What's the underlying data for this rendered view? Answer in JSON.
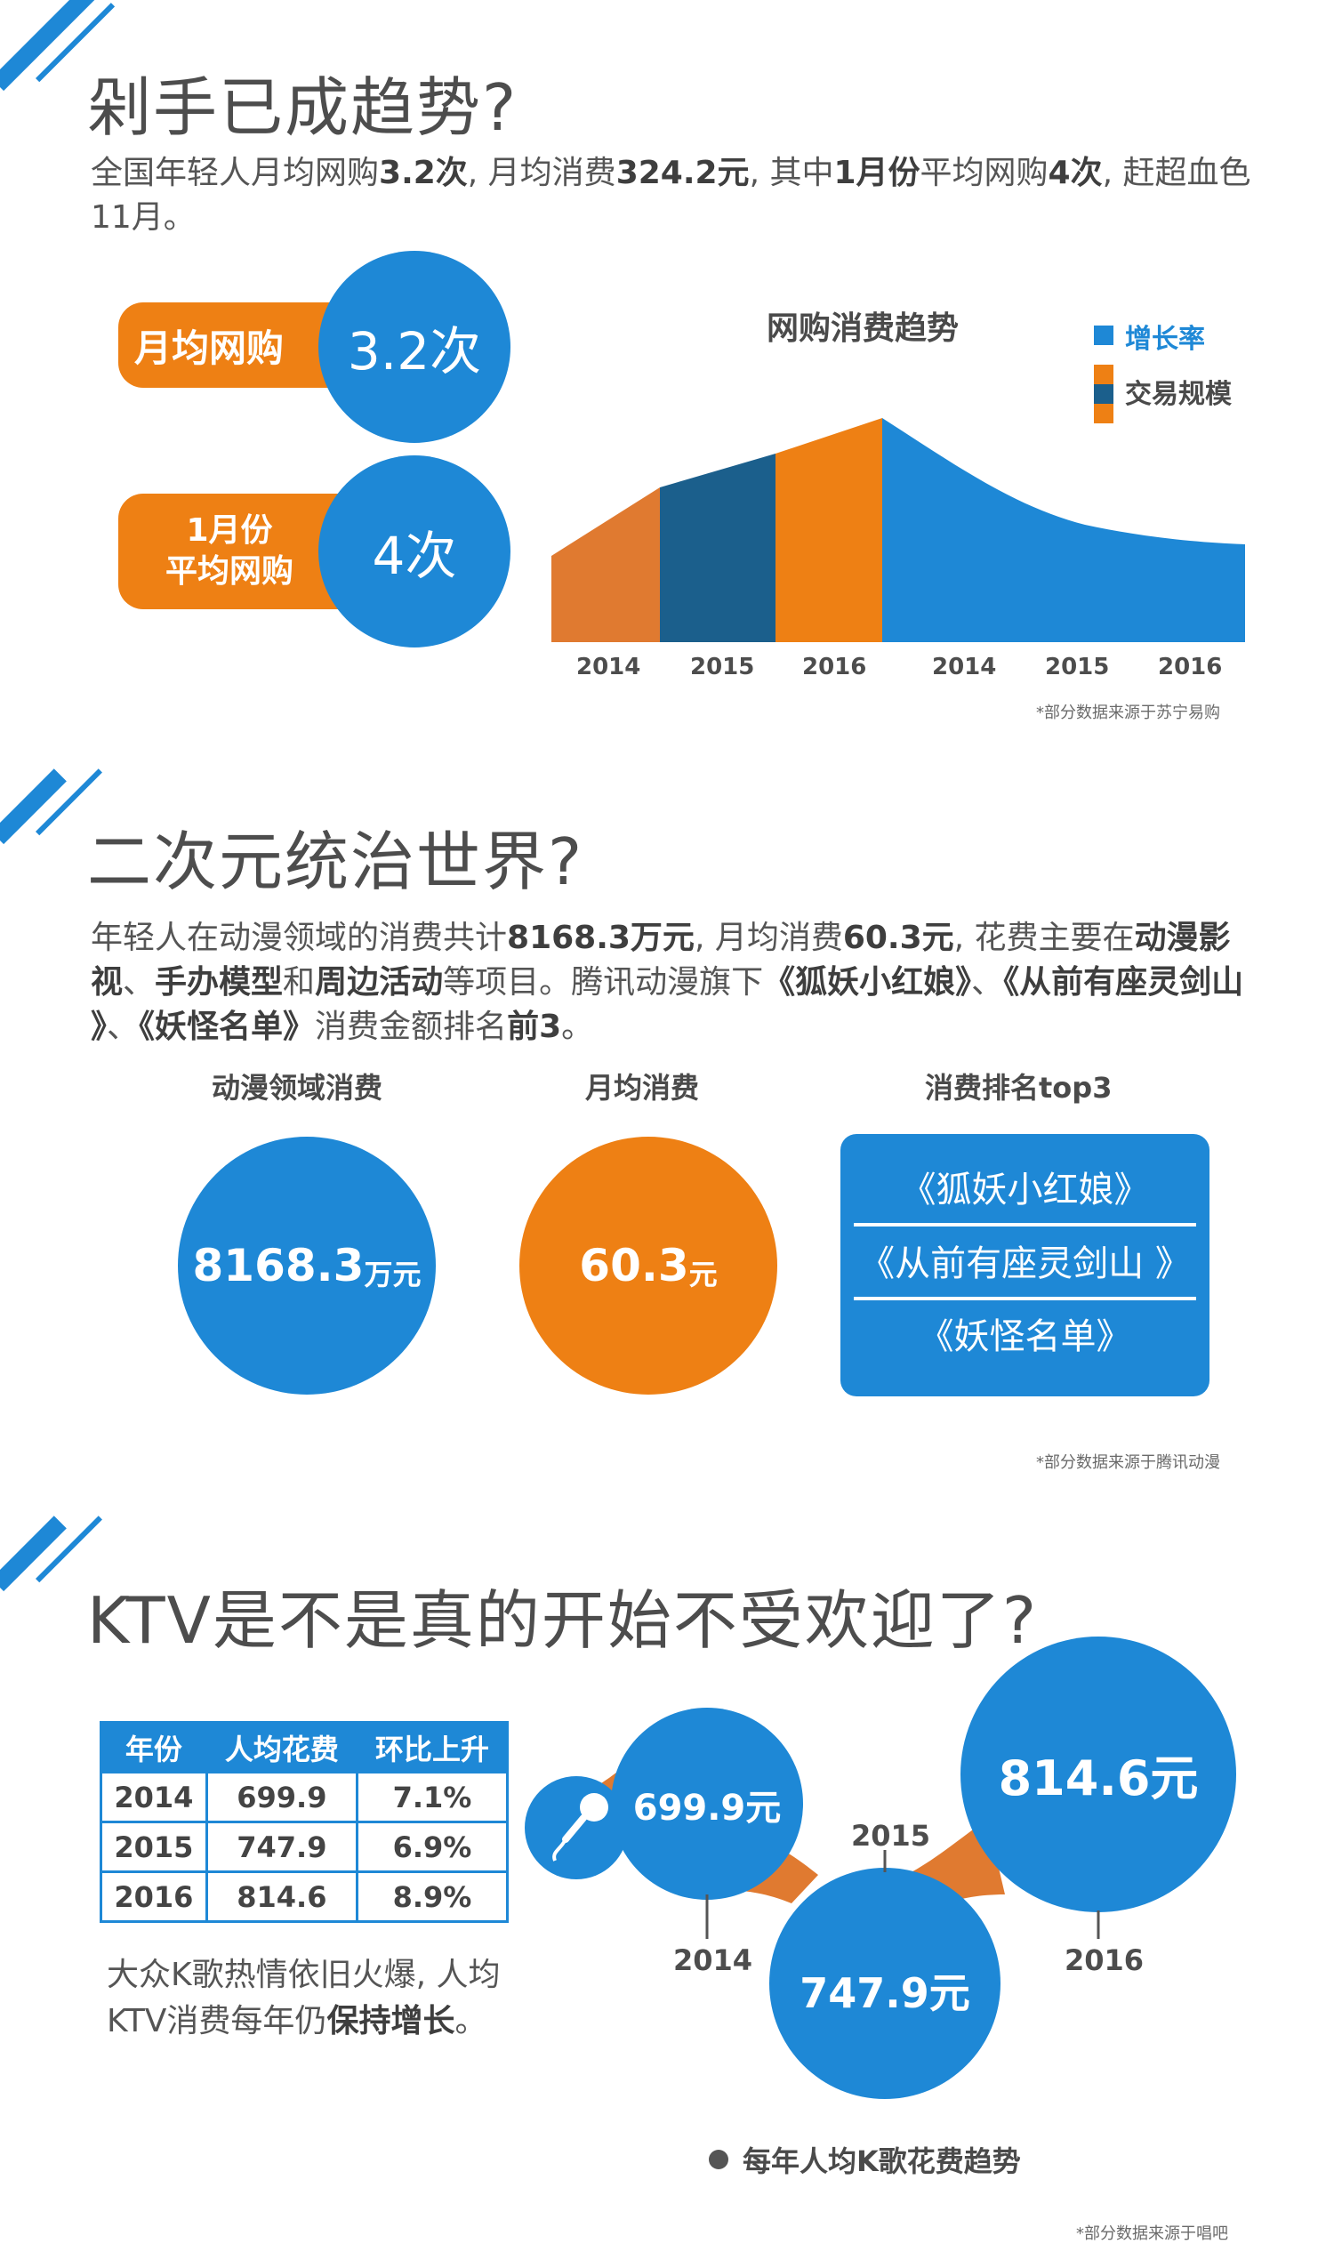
{
  "section1": {
    "title": "剁手已成趋势?",
    "para": [
      {
        "t": "全国年轻人月均网购",
        "b": false
      },
      {
        "t": "3.2次",
        "b": true
      },
      {
        "t": ", 月均消费",
        "b": false
      },
      {
        "t": "324.2元",
        "b": true
      },
      {
        "t": ", 其中",
        "b": false
      },
      {
        "t": "1月份",
        "b": true
      },
      {
        "t": "平均网购",
        "b": false
      },
      {
        "t": "4次",
        "b": true
      },
      {
        "t": ", 赶超血色11月。",
        "b": false
      }
    ],
    "stat1_label": "月均网购",
    "stat1_value": "3.2次",
    "stat2_label_line1": "1月份",
    "stat2_label_line2": "平均网购",
    "stat2_value": "4次",
    "chart_title": "网购消费趋势",
    "legend_growth": "增长率",
    "legend_scale": "交易规模",
    "source": "*部分数据来源于苏宁易购"
  },
  "chart_data": {
    "type": "area",
    "title": "网购消费趋势",
    "legend": [
      "增长率",
      "交易规模"
    ],
    "scale_years": [
      "2014",
      "2015",
      "2016"
    ],
    "growth_years": [
      "2014",
      "2015",
      "2016"
    ],
    "colors": {
      "growth": "#1e88d6",
      "scale_2014": "#e07a30",
      "scale_2015": "#1b5f8c",
      "scale_2016": "#ee8014"
    }
  },
  "section2": {
    "title": "二次元统治世界?",
    "para": [
      {
        "t": "年轻人在动漫领域的消费共计",
        "b": false
      },
      {
        "t": "8168.3万元",
        "b": true
      },
      {
        "t": ", 月均消费",
        "b": false
      },
      {
        "t": "60.3元",
        "b": true
      },
      {
        "t": ", 花费主要在",
        "b": false
      },
      {
        "t": "动漫影视",
        "b": true
      },
      {
        "t": "、",
        "b": false
      },
      {
        "t": "手办模型",
        "b": true
      },
      {
        "t": "和",
        "b": false
      },
      {
        "t": "周边活动",
        "b": true
      },
      {
        "t": "等项目。腾讯动漫旗下",
        "b": false
      },
      {
        "t": "《狐妖小红娘》",
        "b": true
      },
      {
        "t": "、",
        "b": false
      },
      {
        "t": "《从前有座灵剑山 》",
        "b": true
      },
      {
        "t": "、",
        "b": false
      },
      {
        "t": "《妖怪名单》",
        "b": true
      },
      {
        "t": "消费金额排名",
        "b": false
      },
      {
        "t": "前3",
        "b": true
      },
      {
        "t": "。",
        "b": false
      }
    ],
    "col1_label": "动漫领域消费",
    "col1_value": "8168.3",
    "col1_unit": "万元",
    "col2_label": "月均消费",
    "col2_value": "60.3",
    "col2_unit": "元",
    "col3_label": "消费排名top3",
    "top3": [
      "《狐妖小红娘》",
      "《从前有座灵剑山 》",
      "《妖怪名单》"
    ],
    "source": "*部分数据来源于腾讯动漫"
  },
  "section3": {
    "title": "KTV是不是真的开始不受欢迎了?",
    "table": {
      "headers": [
        "年份",
        "人均花费",
        "环比上升"
      ],
      "rows": [
        [
          "2014",
          "699.9",
          "7.1%"
        ],
        [
          "2015",
          "747.9",
          "6.9%"
        ],
        [
          "2016",
          "814.6",
          "8.9%"
        ]
      ]
    },
    "note": [
      {
        "t": "大众K歌热情依旧火爆, 人均KTV消费每年仍",
        "b": false
      },
      {
        "t": "保持增长",
        "b": true
      },
      {
        "t": "。",
        "b": false
      }
    ],
    "bubble_2014": "699.9元",
    "bubble_2015": "747.9元",
    "bubble_2016": "814.6元",
    "year_2014": "2014",
    "year_2015": "2015",
    "year_2016": "2016",
    "caption": "每年人均K歌花费趋势",
    "source": "*部分数据来源于唱吧"
  }
}
